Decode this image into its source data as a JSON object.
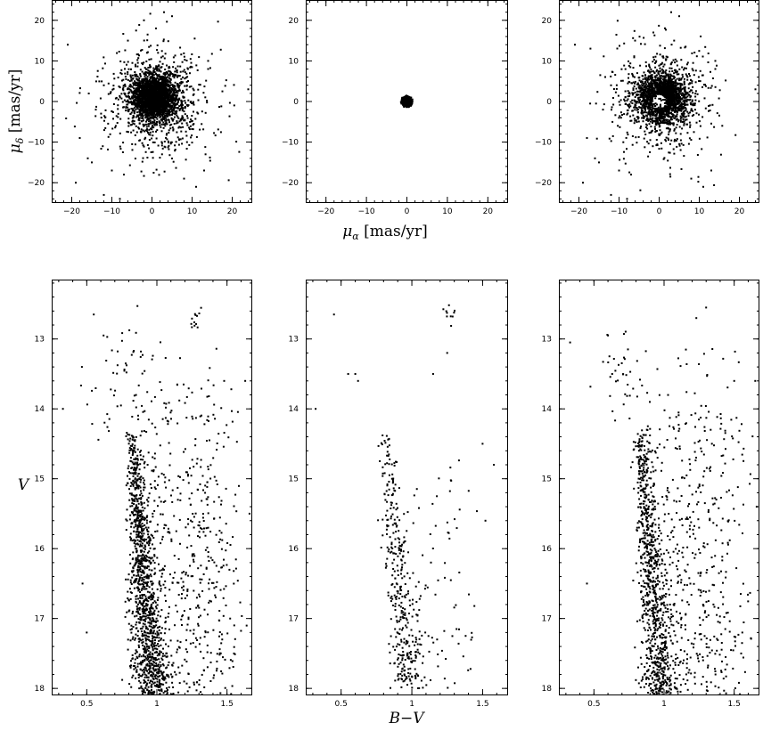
{
  "figure": {
    "pm_xlabel": {
      "symbol": "μ",
      "sub": "α",
      "unit": " [mas/yr]"
    },
    "pm_ylabel": {
      "symbol": "μ",
      "sub": "δ",
      "unit": " [mas/yr]"
    },
    "cmd_xlabel": "B−V",
    "cmd_ylabel": "V"
  },
  "chart_data": [
    {
      "type": "scatter",
      "panel": "proper-motion-all",
      "xlim": [
        -25,
        25
      ],
      "ylim": [
        -25,
        25
      ],
      "xticks": [
        -20,
        -10,
        0,
        10,
        20
      ],
      "yticks": [
        -20,
        -10,
        0,
        10,
        20
      ],
      "distribution": {
        "core": {
          "center": [
            0.5,
            1.0
          ],
          "sigma": [
            2.8,
            2.8
          ],
          "n": 2200
        },
        "halo": {
          "center": [
            1,
            0
          ],
          "sigma": [
            6.5,
            7
          ],
          "n": 700
        }
      },
      "points": [
        [
          -21,
          14
        ],
        [
          -19,
          -20
        ],
        [
          -18,
          -9
        ],
        [
          -16,
          -14
        ],
        [
          -15,
          -15
        ],
        [
          -14,
          -2
        ],
        [
          -12,
          -23
        ],
        [
          -12,
          4
        ],
        [
          -10,
          -17
        ],
        [
          -8,
          -24
        ],
        [
          -7,
          -18
        ],
        [
          -6,
          15
        ],
        [
          3,
          22
        ],
        [
          5,
          21
        ],
        [
          8,
          -19
        ],
        [
          11,
          -21
        ],
        [
          13,
          -17
        ],
        [
          14,
          10
        ],
        [
          14,
          8
        ],
        [
          24,
          3
        ],
        [
          -2,
          20
        ],
        [
          1,
          18
        ]
      ]
    },
    {
      "type": "scatter",
      "panel": "proper-motion-members",
      "xlim": [
        -25,
        25
      ],
      "ylim": [
        -25,
        25
      ],
      "xticks": [
        -20,
        -10,
        0,
        10,
        20
      ],
      "yticks": [
        -20,
        -10,
        0,
        10,
        20
      ],
      "distribution": {
        "core": {
          "center": [
            0,
            0
          ],
          "sigma": [
            0.7,
            0.7
          ],
          "radius": 1.5,
          "n": 500
        }
      }
    },
    {
      "type": "scatter",
      "panel": "proper-motion-field",
      "xlim": [
        -25,
        25
      ],
      "ylim": [
        -25,
        25
      ],
      "xticks": [
        -20,
        -10,
        0,
        10,
        20
      ],
      "yticks": [
        -20,
        -10,
        0,
        10,
        20
      ],
      "distribution": {
        "core": {
          "center": [
            0.8,
            1.0
          ],
          "sigma": [
            3.0,
            3.0
          ],
          "n": 1700,
          "hole": {
            "center": [
              0,
              0
            ],
            "radius": 1.8
          }
        },
        "halo": {
          "center": [
            1,
            0
          ],
          "sigma": [
            6.5,
            7
          ],
          "n": 650
        }
      },
      "points": [
        [
          -21,
          14
        ],
        [
          -19,
          -20
        ],
        [
          -18,
          -9
        ],
        [
          -16,
          -14
        ],
        [
          -15,
          -15
        ],
        [
          -14,
          -2
        ],
        [
          -12,
          -23
        ],
        [
          -12,
          4
        ],
        [
          -10,
          -17
        ],
        [
          -8,
          -24
        ],
        [
          -7,
          -18
        ],
        [
          -6,
          15
        ],
        [
          3,
          22
        ],
        [
          5,
          21
        ],
        [
          8,
          -19
        ],
        [
          11,
          -21
        ],
        [
          13,
          -17
        ],
        [
          14,
          10
        ],
        [
          14,
          8
        ],
        [
          24,
          3
        ]
      ]
    },
    {
      "type": "scatter",
      "panel": "cmd-all",
      "xlim": [
        0.25,
        1.68
      ],
      "ylim": [
        18.1,
        12.15
      ],
      "xticks": [
        0.5,
        1,
        1.5
      ],
      "xtick_labels": [
        "0.5",
        "1",
        "1.5"
      ],
      "yticks": [
        13,
        14,
        15,
        16,
        17,
        18
      ],
      "distribution": {
        "sequence": {
          "v_range": [
            14.3,
            18.1
          ],
          "color_at_top": 0.82,
          "color_slope": 0.04,
          "n": 1100
        },
        "field": {
          "color_range": [
            0.45,
            1.65
          ],
          "v_range": [
            13.0,
            18.1
          ],
          "n": 650
        },
        "red_clump": {
          "center": [
            1.27,
            12.7
          ],
          "n": 12
        },
        "blue_group": {
          "center": [
            0.72,
            13.6
          ],
          "n": 40
        }
      },
      "points": [
        [
          0.33,
          14.0
        ],
        [
          0.47,
          16.5
        ],
        [
          0.5,
          17.2
        ],
        [
          0.55,
          12.65
        ],
        [
          0.62,
          12.95
        ],
        [
          1.48,
          13.6
        ],
        [
          1.63,
          13.6
        ],
        [
          1.66,
          15.5
        ],
        [
          1.55,
          17.5
        ]
      ]
    },
    {
      "type": "scatter",
      "panel": "cmd-members",
      "xlim": [
        0.25,
        1.68
      ],
      "ylim": [
        18.1,
        12.15
      ],
      "xticks": [
        0.5,
        1,
        1.5
      ],
      "xtick_labels": [
        "0.5",
        "1",
        "1.5"
      ],
      "yticks": [
        13,
        14,
        15,
        16,
        17,
        18
      ],
      "distribution": {
        "sequence": {
          "v_range": [
            14.3,
            18.0
          ],
          "color_at_top": 0.81,
          "color_slope": 0.045,
          "n": 360
        },
        "field": {
          "color_range": [
            0.75,
            1.5
          ],
          "v_range": [
            14.3,
            18.0
          ],
          "n": 80
        },
        "red_clump": {
          "center": [
            1.27,
            12.65
          ],
          "n": 10
        }
      },
      "points": [
        [
          0.32,
          14.0
        ],
        [
          0.45,
          12.65
        ],
        [
          0.55,
          13.5
        ],
        [
          0.6,
          13.5
        ],
        [
          0.62,
          13.6
        ],
        [
          1.15,
          13.5
        ],
        [
          1.25,
          13.2
        ],
        [
          1.5,
          14.5
        ],
        [
          1.58,
          14.8
        ],
        [
          1.52,
          15.6
        ]
      ]
    },
    {
      "type": "scatter",
      "panel": "cmd-field",
      "xlim": [
        0.25,
        1.68
      ],
      "ylim": [
        18.1,
        12.15
      ],
      "xticks": [
        0.5,
        1,
        1.5
      ],
      "xtick_labels": [
        "0.5",
        "1",
        "1.5"
      ],
      "yticks": [
        13,
        14,
        15,
        16,
        17,
        18
      ],
      "distribution": {
        "sequence": {
          "v_range": [
            14.3,
            18.1
          ],
          "color_at_top": 0.83,
          "color_slope": 0.04,
          "n": 750
        },
        "field": {
          "color_range": [
            0.45,
            1.65
          ],
          "v_range": [
            13.0,
            18.1
          ],
          "n": 600
        },
        "blue_group": {
          "center": [
            0.72,
            13.6
          ],
          "n": 38
        }
      },
      "points": [
        [
          0.33,
          13.05
        ],
        [
          0.45,
          16.5
        ],
        [
          0.6,
          12.95
        ],
        [
          1.23,
          12.7
        ],
        [
          1.3,
          12.55
        ],
        [
          1.5,
          13.6
        ],
        [
          1.65,
          13.6
        ],
        [
          1.66,
          15.4
        ],
        [
          1.55,
          17.5
        ]
      ]
    }
  ]
}
